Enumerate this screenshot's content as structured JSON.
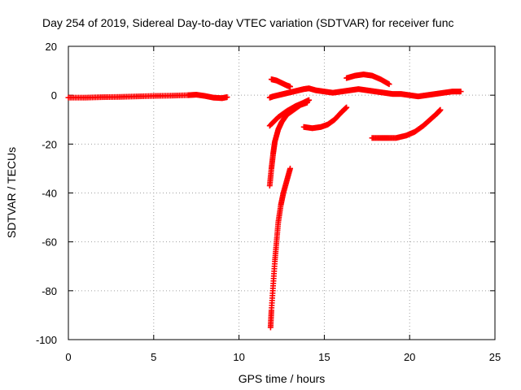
{
  "chart_data": {
    "type": "scatter",
    "title": "Day 254 of 2019, Sidereal Day-to-day VTEC variation (SDTVAR) for receiver func",
    "xlabel": "GPS time / hours",
    "ylabel": "SDTVAR / TECUs",
    "xlim": [
      0,
      25
    ],
    "ylim": [
      -100,
      20
    ],
    "xticks": [
      "0",
      "5",
      "10",
      "15",
      "20",
      "25"
    ],
    "yticks": [
      "-100",
      "-80",
      "-60",
      "-40",
      "-20",
      "0",
      "20"
    ],
    "grid": true,
    "marker": "plus",
    "color": "#ff0000",
    "series": [
      {
        "x": [
          0.0,
          1.0,
          2.0,
          3.0,
          4.0,
          5.0,
          6.0,
          7.0,
          7.5,
          8.0,
          8.5,
          9.0,
          9.3
        ],
        "y": [
          -1.0,
          -1.0,
          -0.8,
          -0.7,
          -0.5,
          -0.3,
          -0.2,
          0.0,
          0.2,
          -0.3,
          -1.0,
          -1.2,
          -0.8
        ]
      },
      {
        "x": [
          11.8,
          12.0,
          12.3,
          12.6,
          12.9,
          13.2,
          13.5,
          13.8,
          14.1,
          14.5,
          15.0,
          15.5,
          16.0,
          16.5,
          17.0,
          17.5,
          18.0,
          18.5,
          19.0,
          19.5,
          20.0,
          20.5,
          21.0,
          21.5,
          22.0,
          22.5,
          23.0
        ],
        "y": [
          -1.0,
          -0.5,
          0.0,
          0.5,
          1.0,
          1.5,
          2.0,
          2.5,
          2.8,
          2.0,
          1.5,
          1.0,
          1.5,
          2.0,
          2.5,
          2.0,
          1.5,
          1.0,
          0.5,
          0.5,
          0.0,
          -0.5,
          0.0,
          0.5,
          1.0,
          1.5,
          1.5
        ]
      },
      {
        "x": [
          11.9,
          12.2,
          12.5,
          12.8,
          13.0
        ],
        "y": [
          6.5,
          6.0,
          5.0,
          4.0,
          3.5
        ]
      },
      {
        "x": [
          16.3,
          16.8,
          17.3,
          17.8,
          18.3,
          18.8
        ],
        "y": [
          7.0,
          8.0,
          8.5,
          8.0,
          6.5,
          4.5
        ]
      },
      {
        "x": [
          11.8,
          12.3,
          12.8,
          13.3,
          13.8,
          14.1
        ],
        "y": [
          -12.5,
          -9.0,
          -6.5,
          -4.5,
          -3.0,
          -2.0
        ]
      },
      {
        "x": [
          11.8,
          11.9,
          12.0,
          12.1,
          12.3,
          12.5,
          12.8,
          13.2,
          13.6,
          14.0
        ],
        "y": [
          -37.0,
          -30.0,
          -24.0,
          -19.0,
          -14.0,
          -11.0,
          -8.0,
          -6.0,
          -4.0,
          -3.0
        ]
      },
      {
        "x": [
          13.8,
          14.3,
          14.8,
          15.2,
          15.6,
          16.0,
          16.3
        ],
        "y": [
          -13.0,
          -13.5,
          -13.0,
          -12.0,
          -10.0,
          -7.0,
          -5.0
        ]
      },
      {
        "x": [
          11.85,
          11.9,
          12.0,
          12.1,
          12.2,
          12.3,
          12.45,
          12.6,
          12.8,
          13.0
        ],
        "y": [
          -95.0,
          -88.0,
          -78.0,
          -68.0,
          -60.0,
          -52.0,
          -45.0,
          -40.0,
          -35.0,
          -30.0
        ]
      },
      {
        "x": [
          17.8,
          18.5,
          19.2,
          19.8,
          20.3,
          20.8,
          21.2,
          21.6,
          21.8
        ],
        "y": [
          -17.5,
          -17.5,
          -17.5,
          -16.5,
          -15.0,
          -12.5,
          -10.0,
          -7.5,
          -6.0
        ]
      }
    ]
  }
}
